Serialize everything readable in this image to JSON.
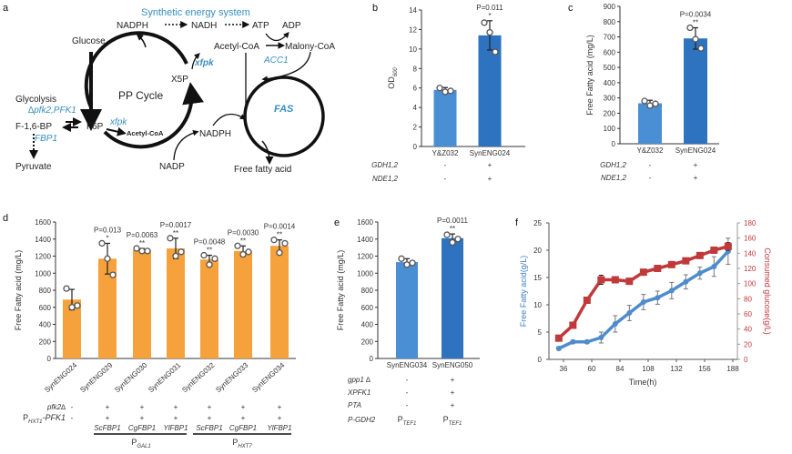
{
  "panel_labels": {
    "a": "a",
    "b": "b",
    "c": "c",
    "d": "d",
    "e": "e",
    "f": "f"
  },
  "diagram": {
    "title": "Synthetic energy system",
    "nadph_top": "NADPH",
    "nadh": "NADH",
    "atp": "ATP",
    "adp": "ADP",
    "glucose": "Glucose",
    "acetyl_coa": "Acetyl-CoA",
    "malonyl_coa": "Malony-CoA",
    "acc1": "ACC1",
    "xfpk_top": "xfpk",
    "x5p": "X5P",
    "pp_cycle": "PP Cycle",
    "glycolysis": "Glycolysis",
    "pfk": "∆pfk2,PFK1",
    "f16bp": "F-1,6-BP",
    "f6p": "F6P",
    "xfpk_mid": "xfpk",
    "acetyl_coa_small": "Acetyl-CoA",
    "fbp1": "FBP1",
    "nadph_mid": "NADPH",
    "fas": "FAS",
    "pyruvate": "Pyruvate",
    "nadp": "NADP",
    "free_fatty_acid": "Free fatty acid",
    "accent_color": "#3a8fc0"
  },
  "chart_data": [
    {
      "panel": "b",
      "type": "bar",
      "categories": [
        "Y&Z032",
        "SynENG024"
      ],
      "values": [
        5.8,
        11.4
      ],
      "errors": [
        0.25,
        1.5
      ],
      "points": [
        [
          6.0,
          5.6,
          5.7
        ],
        [
          12.7,
          11.7,
          9.7
        ]
      ],
      "ylabel": "OD",
      "ylabel_sub": "600",
      "ylim": [
        0,
        14
      ],
      "ytick_step": 2,
      "pvalues": [
        "",
        "P=0.011"
      ],
      "significance": [
        "",
        "*"
      ],
      "colors": [
        "#4a8fd3",
        "#2e73bf"
      ],
      "conditions": [
        {
          "label": "GDH1,2",
          "values": [
            "-",
            "+"
          ]
        },
        {
          "label": "NDE1,2",
          "values": [
            "-",
            "+"
          ]
        }
      ]
    },
    {
      "panel": "c",
      "type": "bar",
      "categories": [
        "Y&Z032",
        "SynENG024"
      ],
      "values": [
        265,
        690
      ],
      "errors": [
        20,
        70
      ],
      "points": [
        [
          280,
          250,
          262
        ],
        [
          760,
          685,
          625
        ]
      ],
      "ylabel": "Free Fatty acid (mg/L)",
      "ylim": [
        0,
        900
      ],
      "ytick_step": 100,
      "pvalues": [
        "",
        "P=0.0034"
      ],
      "significance": [
        "",
        "**"
      ],
      "colors": [
        "#4a8fd3",
        "#2e73bf"
      ],
      "conditions": [
        {
          "label": "GDH1,2",
          "values": [
            "-",
            "+"
          ]
        },
        {
          "label": "NDE1,2",
          "values": [
            "-",
            "+"
          ]
        }
      ]
    },
    {
      "panel": "d",
      "type": "bar",
      "categories": [
        "SynENG024",
        "SynENG029",
        "SynENG030",
        "SynENG031",
        "SynENG032",
        "SynENG033",
        "SynENG034"
      ],
      "values": [
        690,
        1170,
        1270,
        1290,
        1160,
        1260,
        1320
      ],
      "errors": [
        120,
        180,
        20,
        120,
        50,
        60,
        70
      ],
      "points": [
        [
          820,
          600,
          620
        ],
        [
          1350,
          1170,
          980
        ],
        [
          1290,
          1260,
          1260
        ],
        [
          1410,
          1200,
          1250
        ],
        [
          1210,
          1100,
          1170
        ],
        [
          1320,
          1220,
          1250
        ],
        [
          1390,
          1240,
          1350
        ]
      ],
      "ylabel": "Free Fatty acid (mg/L)",
      "ylim": [
        0,
        1600
      ],
      "ytick_step": 200,
      "pvalues": [
        "",
        "P=0.013",
        "P=0.0063",
        "P=0.0017",
        "P=0.0048",
        "P=0.0030",
        "P=0.0014"
      ],
      "significance": [
        "",
        "*",
        "**",
        "**",
        "**",
        "**",
        "**"
      ],
      "colors": [
        "#f5a13c"
      ],
      "conditions": [
        {
          "label": "pfk2∆",
          "values": [
            "-",
            "+",
            "+",
            "+",
            "+",
            "+",
            "+"
          ]
        },
        {
          "label_main": "P",
          "label_sub": "HXT1",
          "label_tail": "-PFK1",
          "values": [
            "-",
            "+",
            "+",
            "+",
            "+",
            "+",
            "+"
          ]
        }
      ],
      "fbp_genes": [
        "",
        "ScFBP1",
        "CgFBP1",
        "YlFBP1",
        "ScFBP1",
        "CgFBP1",
        "YlFBP1"
      ],
      "promoter_groups": [
        {
          "main": "P",
          "sub": "GAL1"
        },
        {
          "main": "P",
          "sub": "HXT7"
        }
      ]
    },
    {
      "panel": "e",
      "type": "bar",
      "categories": [
        "SynENG034",
        "SynENG050"
      ],
      "values": [
        1130,
        1410
      ],
      "errors": [
        40,
        50
      ],
      "points": [
        [
          1170,
          1100,
          1120
        ],
        [
          1450,
          1360,
          1400
        ]
      ],
      "ylabel": "Free Fatty acid (mg/L)",
      "ylim": [
        0,
        1600
      ],
      "ytick_step": 200,
      "pvalues": [
        "",
        "P=0.0011"
      ],
      "significance": [
        "",
        "**"
      ],
      "colors": [
        "#4a8fd3",
        "#2e73bf"
      ],
      "conditions": [
        {
          "label": "gpp1 ∆",
          "values": [
            "-",
            "+"
          ]
        },
        {
          "label": "XPFK1",
          "values": [
            "-",
            "+"
          ]
        },
        {
          "label": "PTA",
          "values": [
            "-",
            "+"
          ]
        }
      ],
      "promoter_row": {
        "label": "P-GDH2",
        "values": [
          {
            "main": "P",
            "sub": "TEF1"
          },
          {
            "main": "P",
            "sub": "TEF1"
          }
        ]
      }
    },
    {
      "panel": "f",
      "type": "line",
      "xlabel": "Time(h)",
      "xtick_labels": [
        "36",
        "60",
        "84",
        "108",
        "132",
        "156",
        "188"
      ],
      "x": [
        32,
        44,
        56,
        68,
        80,
        92,
        104,
        116,
        128,
        140,
        152,
        164,
        176
      ],
      "series": [
        {
          "axis": "left",
          "color": "#4f8ccd",
          "marker": "circle",
          "values": [
            2.0,
            3.2,
            3.2,
            4.0,
            6.5,
            8.5,
            10.5,
            11.3,
            12.6,
            14.2,
            15.8,
            17.0,
            19.8
          ],
          "errors": [
            0.3,
            0.3,
            0.3,
            1.0,
            1.5,
            1.4,
            1.4,
            1.2,
            1.5,
            1.3,
            1.1,
            1.8,
            2.4
          ]
        },
        {
          "axis": "right",
          "color": "#c0393b",
          "marker": "square",
          "values": [
            28,
            45,
            78,
            105,
            105,
            103,
            115,
            120,
            125,
            130,
            137,
            144,
            149
          ],
          "errors": [
            0,
            0,
            0,
            6,
            4,
            4,
            0,
            0,
            0,
            0,
            0,
            0,
            5
          ]
        }
      ],
      "ylabel_left": "Free Fatty acid(g/L)",
      "ylim_left": [
        0,
        25
      ],
      "ytick_step_left": 5,
      "ylabel_right": "Consumed glucose(g/L)",
      "ylim_right": [
        0,
        180
      ],
      "ytick_step_right": 20,
      "left_color": "#3f82c4",
      "right_color": "#c0393b"
    }
  ]
}
